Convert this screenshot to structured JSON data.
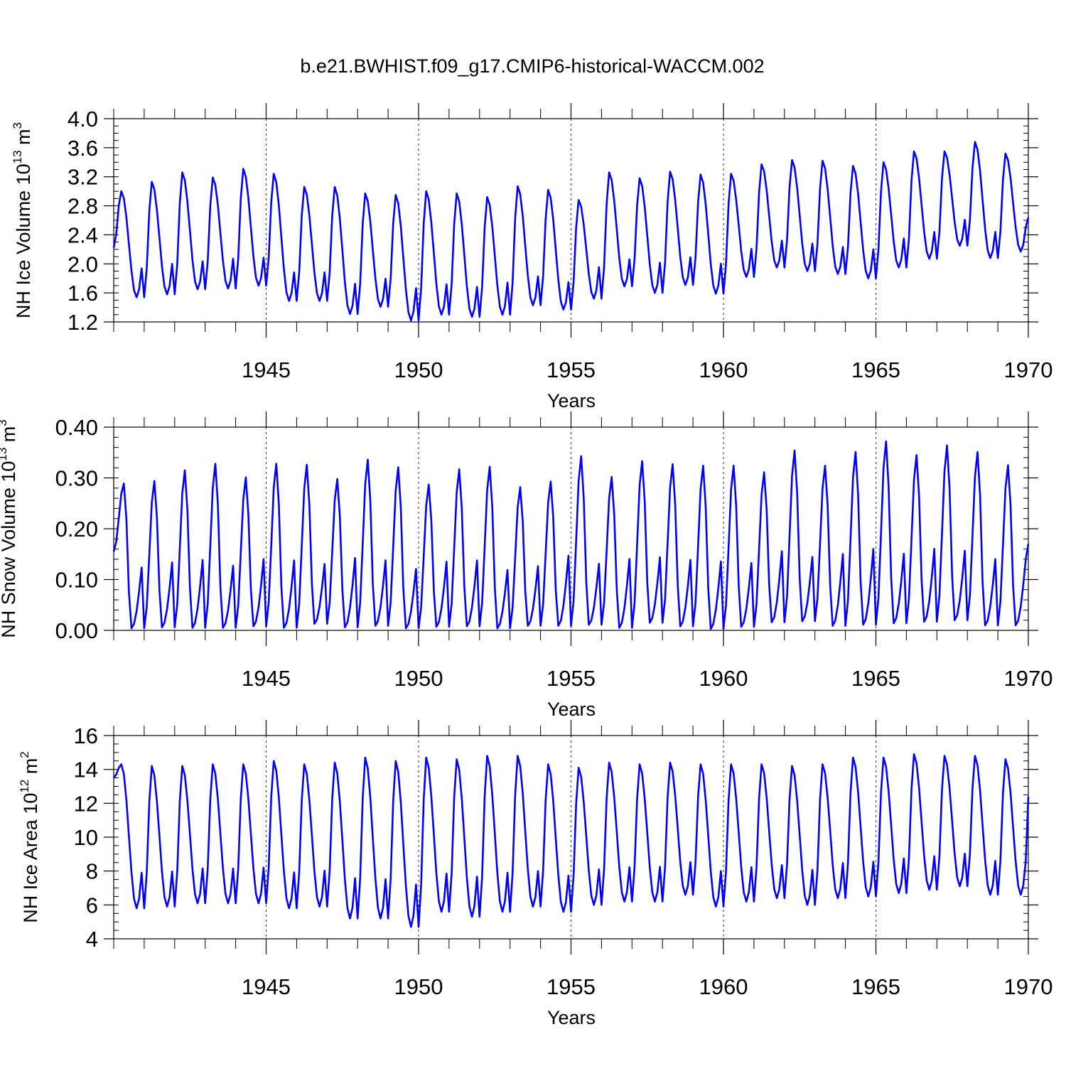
{
  "title": "b.e21.BWHIST.f09_g17.CMIP6-historical-WACCM.002",
  "colors": {
    "series": "#0000ff",
    "axis": "#000000",
    "grid": "#000000"
  },
  "chart_data": [
    {
      "type": "line",
      "ylabel": {
        "prefix": "NH Ice Volume 10",
        "exp": "13",
        "unit": " m",
        "unit_exp": "3"
      },
      "xlabel": "Years",
      "xlim": [
        1940.0,
        1970.0
      ],
      "ylim": [
        1.2,
        4.0
      ],
      "ytick_values": [
        1.2,
        1.6,
        2.0,
        2.4,
        2.8,
        3.2,
        3.6,
        4.0
      ],
      "ytick_labels": [
        "1.2",
        "1.6",
        "2.0",
        "2.4",
        "2.8",
        "3.2",
        "3.6",
        "4.0"
      ],
      "yminor_step": 0.1,
      "xtick_values": [
        1945,
        1950,
        1955,
        1960,
        1965,
        1970
      ],
      "xtick_labels": [
        "1945",
        "1950",
        "1955",
        "1960",
        "1965",
        "1970"
      ],
      "xminor_step": 1,
      "dashed_years": [
        1945,
        1950,
        1955,
        1960,
        1965
      ],
      "series": [
        {
          "name": "NH Ice Volume",
          "start_year": 1940.0,
          "step": 0.083333,
          "maxima": [
            3.0,
            3.13,
            3.26,
            3.19,
            3.31,
            3.24,
            3.06,
            3.06,
            2.97,
            2.95,
            3.0,
            2.97,
            2.92,
            3.07,
            3.02,
            2.88,
            3.26,
            3.18,
            3.27,
            3.23,
            3.24,
            3.37,
            3.43,
            3.42,
            3.35,
            3.4,
            3.55,
            3.55,
            3.68,
            3.52
          ],
          "minima": [
            1.54,
            1.58,
            1.65,
            1.66,
            1.7,
            1.49,
            1.49,
            1.31,
            1.41,
            1.22,
            1.3,
            1.27,
            1.3,
            1.43,
            1.37,
            1.52,
            1.69,
            1.6,
            1.71,
            1.59,
            1.82,
            1.95,
            1.9,
            1.86,
            1.8,
            1.95,
            2.07,
            2.25,
            2.08,
            2.17
          ],
          "first_value": 2.22,
          "last_value": 2.64,
          "peak_phase": 3,
          "trough_phase": 9
        }
      ]
    },
    {
      "type": "line",
      "ylabel": {
        "prefix": "NH Snow Volume 10",
        "exp": "13",
        "unit": " m",
        "unit_exp": "3"
      },
      "xlabel": "Years",
      "xlim": [
        1940.0,
        1970.0
      ],
      "ylim": [
        0.0,
        0.4
      ],
      "ytick_values": [
        0.0,
        0.1,
        0.2,
        0.3,
        0.4
      ],
      "ytick_labels": [
        "0.00",
        "0.10",
        "0.20",
        "0.30",
        "0.40"
      ],
      "yminor_step": 0.02,
      "xtick_values": [
        1945,
        1950,
        1955,
        1960,
        1965,
        1970
      ],
      "xtick_labels": [
        "1945",
        "1950",
        "1955",
        "1960",
        "1965",
        "1970"
      ],
      "xminor_step": 1,
      "dashed_years": [
        1945,
        1950,
        1955,
        1960,
        1965
      ],
      "series": [
        {
          "name": "NH Snow Volume",
          "start_year": 1940.0,
          "step": 0.083333,
          "maxima": [
            0.289,
            0.294,
            0.315,
            0.328,
            0.301,
            0.328,
            0.326,
            0.298,
            0.336,
            0.321,
            0.287,
            0.317,
            0.322,
            0.282,
            0.293,
            0.343,
            0.302,
            0.333,
            0.327,
            0.324,
            0.324,
            0.311,
            0.354,
            0.324,
            0.351,
            0.372,
            0.345,
            0.364,
            0.351,
            0.325
          ],
          "minima": [
            0.004,
            0.006,
            0.005,
            0.005,
            0.008,
            0.005,
            0.013,
            0.006,
            0.009,
            0.004,
            0.007,
            0.008,
            0.004,
            0.009,
            0.009,
            0.011,
            0.005,
            0.015,
            0.008,
            0.003,
            0.007,
            0.016,
            0.018,
            0.009,
            0.011,
            0.014,
            0.017,
            0.02,
            0.01,
            0.01
          ],
          "first_value": 0.155,
          "last_value": 0.17,
          "peak_phase": 4,
          "trough_phase": 7
        }
      ]
    },
    {
      "type": "line",
      "ylabel": {
        "prefix": "NH Ice Area 10",
        "exp": "12",
        "unit": " m",
        "unit_exp": "2"
      },
      "xlabel": "Years",
      "xlim": [
        1940.0,
        1970.0
      ],
      "ylim": [
        4,
        16
      ],
      "ytick_values": [
        4,
        6,
        8,
        10,
        12,
        14,
        16
      ],
      "ytick_labels": [
        "4",
        "6",
        "8",
        "10",
        "12",
        "14",
        "16"
      ],
      "yminor_step": 0.5,
      "xtick_values": [
        1945,
        1950,
        1955,
        1960,
        1965,
        1970
      ],
      "xtick_labels": [
        "1945",
        "1950",
        "1955",
        "1960",
        "1965",
        "1970"
      ],
      "xminor_step": 1,
      "dashed_years": [
        1945,
        1950,
        1955,
        1960,
        1965
      ],
      "series": [
        {
          "name": "NH Ice Area",
          "start_year": 1940.0,
          "step": 0.083333,
          "maxima": [
            14.3,
            14.2,
            14.2,
            14.3,
            14.3,
            14.5,
            14.3,
            14.4,
            14.7,
            14.5,
            14.7,
            14.6,
            14.8,
            14.8,
            14.3,
            14.1,
            14.4,
            14.3,
            14.4,
            14.3,
            14.3,
            14.3,
            14.2,
            14.3,
            14.7,
            14.7,
            14.9,
            14.8,
            14.8,
            14.6
          ],
          "minima": [
            5.8,
            5.9,
            6.1,
            6.1,
            6.1,
            5.8,
            5.9,
            5.2,
            5.2,
            4.7,
            5.6,
            5.3,
            5.6,
            5.9,
            5.6,
            6.0,
            6.2,
            6.2,
            6.6,
            5.9,
            6.2,
            6.4,
            6.0,
            6.4,
            6.5,
            6.7,
            6.9,
            7.1,
            6.6,
            6.6
          ],
          "first_value": 13.5,
          "last_value": 12.4,
          "peak_phase": 3,
          "trough_phase": 9
        }
      ]
    }
  ]
}
